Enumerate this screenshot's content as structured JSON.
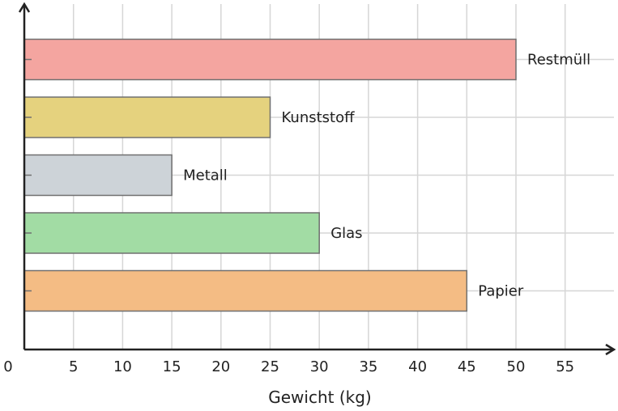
{
  "chart_data": {
    "type": "bar",
    "orientation": "horizontal",
    "categories": [
      "Papier",
      "Glas",
      "Metall",
      "Kunststoff",
      "Restmüll"
    ],
    "values": [
      45,
      30,
      15,
      25,
      50
    ],
    "colors": [
      "#f4bc84",
      "#a2dca4",
      "#cdd3d8",
      "#e5d27e",
      "#f4a5a0"
    ],
    "xlabel": "Gewicht (kg)",
    "ylabel": "",
    "xlim": [
      0,
      60
    ],
    "xticks": [
      0,
      5,
      10,
      15,
      20,
      25,
      30,
      35,
      40,
      45,
      50,
      55
    ],
    "grid": true,
    "legend": "none"
  }
}
